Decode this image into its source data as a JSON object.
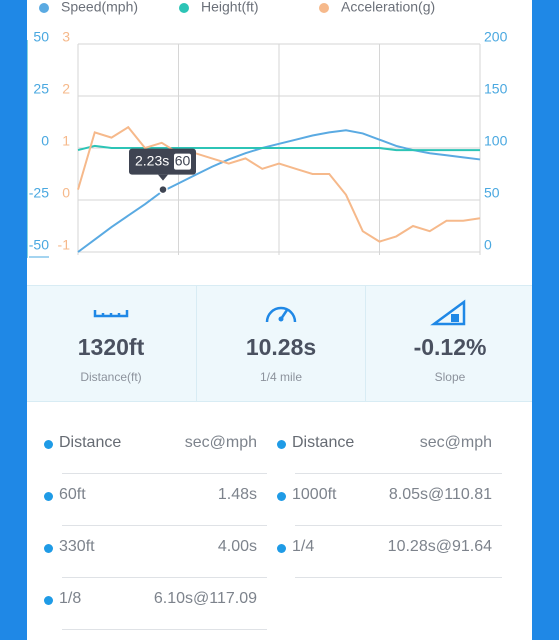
{
  "chart_data": {
    "type": "line",
    "series": [
      {
        "name": "Speed(mph)",
        "color": "#5aaae2",
        "axis": "y2",
        "values": [
          0,
          12,
          24,
          35,
          46,
          58,
          66,
          74,
          82,
          89,
          95,
          100,
          104,
          108,
          112,
          115,
          117,
          114,
          108,
          102,
          98,
          95,
          93,
          91,
          89
        ]
      },
      {
        "name": "Height(ft)",
        "color": "#2cc4b6",
        "axis": "y",
        "values": [
          -1,
          1,
          0,
          0,
          0,
          0,
          0,
          0,
          0,
          0,
          0,
          0,
          0,
          0,
          0,
          0,
          0,
          0,
          0,
          -1,
          -1,
          -1,
          -1,
          -1,
          -1
        ]
      },
      {
        "name": "Acceleration(g)",
        "color": "#f6b98b",
        "axis": "y3",
        "values": [
          0.2,
          1.3,
          1.2,
          1.4,
          1.0,
          1.1,
          0.9,
          0.9,
          0.8,
          0.7,
          0.8,
          0.6,
          0.7,
          0.6,
          0.5,
          0.5,
          0.1,
          -0.6,
          -0.8,
          -0.7,
          -0.5,
          -0.6,
          -0.4,
          -0.4,
          -0.35
        ]
      }
    ],
    "ylim": [
      -50,
      50
    ],
    "yticks": [
      -50,
      -25,
      0,
      25,
      50
    ],
    "y2lim": [
      0,
      200
    ],
    "y2ticks": [
      0,
      50,
      100,
      150,
      200
    ],
    "y3lim": [
      -1,
      3
    ],
    "y3ticks": [
      -1,
      0,
      1,
      2,
      3
    ],
    "grid": true,
    "tooltip": {
      "time": "2.23s",
      "value": 60
    }
  },
  "stats": [
    {
      "value": "1320ft",
      "label": "Distance(ft)"
    },
    {
      "value": "10.28s",
      "label": "1/4 mile"
    },
    {
      "value": "-0.12%",
      "label": "Slope"
    }
  ],
  "table": {
    "columns": [
      {
        "header": [
          "Distance",
          "sec@mph"
        ],
        "rows": [
          [
            "60ft",
            "1.48s"
          ],
          [
            "330ft",
            "4.00s"
          ],
          [
            "1/8",
            "6.10s@117.09"
          ]
        ]
      },
      {
        "header": [
          "Distance",
          "sec@mph"
        ],
        "rows": [
          [
            "1000ft",
            "8.05s@110.81"
          ],
          [
            "1/4",
            "10.28s@91.64"
          ]
        ]
      }
    ]
  }
}
